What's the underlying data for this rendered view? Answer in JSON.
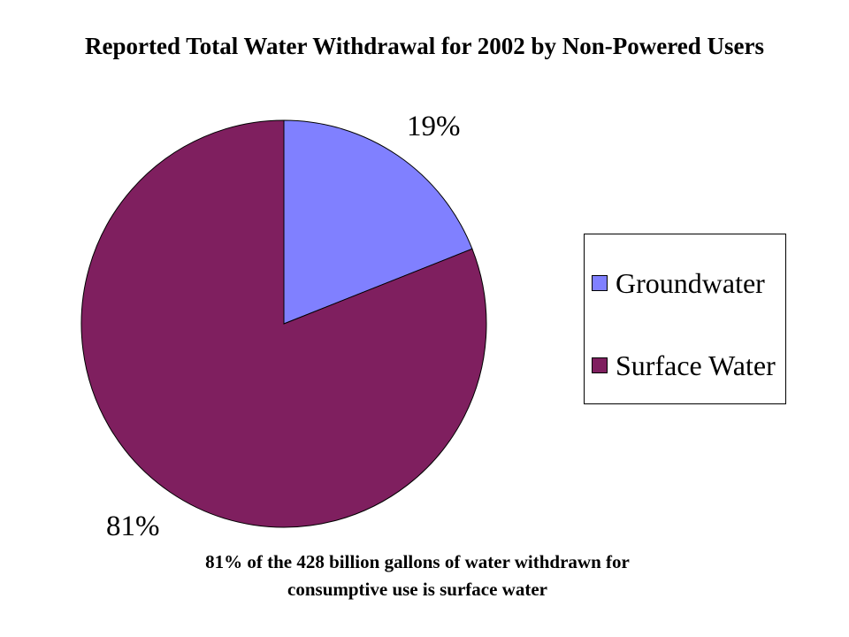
{
  "chart_data": {
    "type": "pie",
    "title": "Reported Total Water Withdrawal for 2002 by Non-Powered Users",
    "slices": [
      {
        "name": "Groundwater",
        "value": 19,
        "label": "19%",
        "color": "#8080ff"
      },
      {
        "name": "Surface Water",
        "value": 81,
        "label": "81%",
        "color": "#7f1f5f"
      }
    ],
    "legend_placement": "right",
    "note_lines": [
      "81% of the 428 billion gallons of water withdrawn for",
      "consumptive use is surface water"
    ]
  }
}
